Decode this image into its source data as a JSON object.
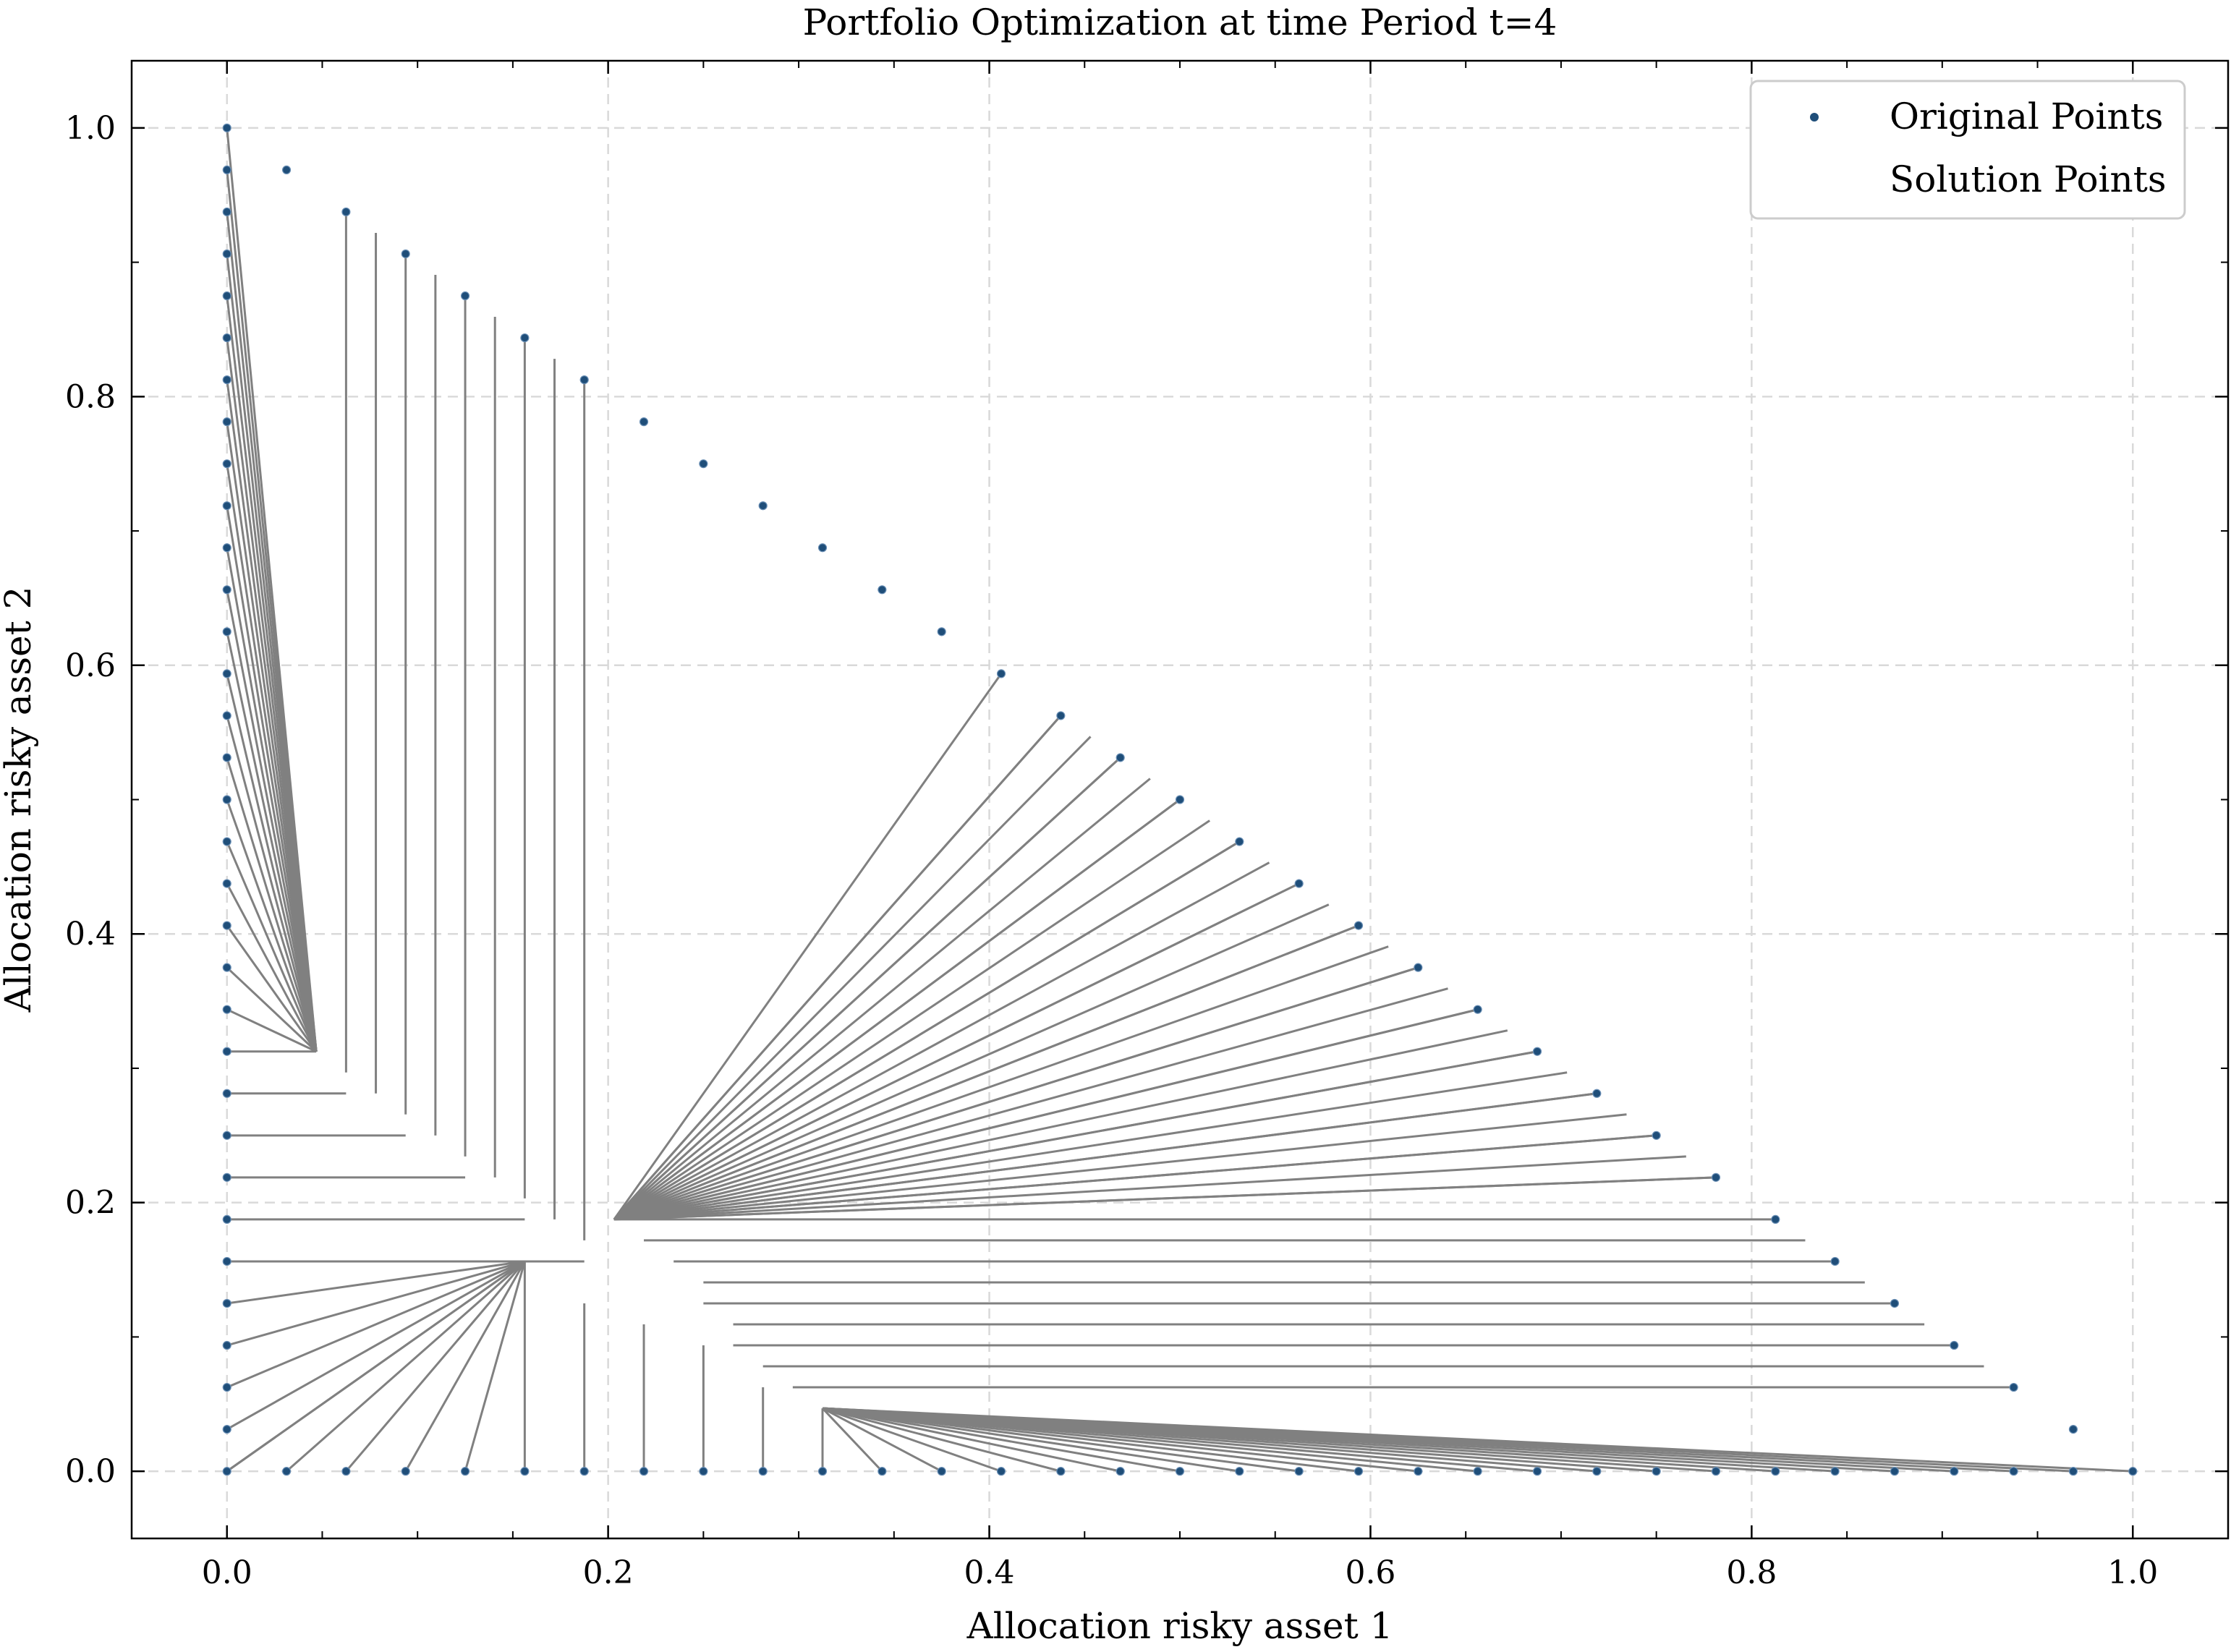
{
  "chart_data": {
    "type": "scatter",
    "title": "Portfolio Optimization at time Period t=4",
    "xlabel": "Allocation risky asset 1",
    "ylabel": "Allocation risky asset 2",
    "xlim": [
      -0.05,
      1.05
    ],
    "ylim": [
      -0.05,
      1.05
    ],
    "xticks": [
      0.0,
      0.2,
      0.4,
      0.6,
      0.8,
      1.0
    ],
    "yticks": [
      0.0,
      0.2,
      0.4,
      0.6,
      0.8,
      1.0
    ],
    "xtick_labels": [
      "0.0",
      "0.2",
      "0.4",
      "0.6",
      "0.8",
      "1.0"
    ],
    "ytick_labels": [
      "0.0",
      "0.2",
      "0.4",
      "0.6",
      "0.8",
      "1.0"
    ],
    "grid": true,
    "legend_position": "top-right",
    "legend": [
      "Original Points",
      "Solution Points"
    ],
    "colors": {
      "original": "#1f4e79",
      "line": "#808080",
      "grid": "#d9d9d9"
    },
    "series": [
      {
        "name": "Original Points",
        "description": "Points on the boundary of the simplex: x=0 edge, y=0 edge, and x+y=1 diagonal, step 1/32",
        "step": 0.03125,
        "edges": [
          "x=0",
          "y=0",
          "x+y=1"
        ]
      },
      {
        "name": "Solution Points",
        "clusters": [
          {
            "x": 0.046875,
            "y": 0.3125,
            "source": "x=0 edge, y from 0.3125 to 1.0"
          },
          {
            "x": 0.203125,
            "y": 0.1875,
            "source": "diagonal, x from 0.203125 to 0.796875"
          },
          {
            "x": 0.15625,
            "y": 0.15625,
            "source": "x=0 edge, y from 0.0 to 0.15625; y=0 edge, x from 0.0 to 0.15625"
          },
          {
            "x": 0.3125,
            "y": 0.046875,
            "source": "y=0 edge, x from 0.3125 to 1.0"
          }
        ],
        "vertical_segments": [
          {
            "x": 0.0625,
            "y_top": 0.9375,
            "y_end": 0.296875
          },
          {
            "x": 0.078125,
            "y_top": 0.921875,
            "y_end": 0.28125
          },
          {
            "x": 0.09375,
            "y_top": 0.90625,
            "y_end": 0.265625
          },
          {
            "x": 0.109375,
            "y_top": 0.890625,
            "y_end": 0.25
          },
          {
            "x": 0.125,
            "y_top": 0.875,
            "y_end": 0.234375
          },
          {
            "x": 0.140625,
            "y_top": 0.859375,
            "y_end": 0.21875
          },
          {
            "x": 0.15625,
            "y_top": 0.84375,
            "y_end": 0.203125
          },
          {
            "x": 0.171875,
            "y_top": 0.828125,
            "y_end": 0.1875
          },
          {
            "x": 0.1875,
            "y_top": 0.8125,
            "y_end": 0.171875
          },
          {
            "x": 0.15625,
            "y_top": 0.15625,
            "y_end": 0.0
          },
          {
            "x": 0.1875,
            "y_top": 0.125,
            "y_end": 0.0
          },
          {
            "x": 0.21875,
            "y_top": 0.109375,
            "y_end": 0.0
          },
          {
            "x": 0.25,
            "y_top": 0.09375,
            "y_end": 0.0
          },
          {
            "x": 0.28125,
            "y_top": 0.0625,
            "y_end": 0.0
          }
        ],
        "horizontal_segments": [
          {
            "y": 0.28125,
            "x_end": 0.0625
          },
          {
            "y": 0.25,
            "x_end": 0.09375
          },
          {
            "y": 0.21875,
            "x_end": 0.125
          },
          {
            "y": 0.1875,
            "x_end": 0.15625
          },
          {
            "y": 0.15625,
            "x_end": 0.1875
          },
          {
            "y": 0.1875,
            "x_start": 0.203125,
            "x_end": 0.8125
          },
          {
            "y": 0.171875,
            "x_start": 0.21875,
            "x_end": 0.828125
          },
          {
            "y": 0.15625,
            "x_start": 0.234375,
            "x_end": 0.84375
          },
          {
            "y": 0.140625,
            "x_start": 0.25,
            "x_end": 0.859375
          },
          {
            "y": 0.125,
            "x_start": 0.25,
            "x_end": 0.875
          },
          {
            "y": 0.109375,
            "x_start": 0.265625,
            "x_end": 0.890625
          },
          {
            "y": 0.09375,
            "x_start": 0.265625,
            "x_end": 0.90625
          },
          {
            "y": 0.078125,
            "x_start": 0.28125,
            "x_end": 0.921875
          },
          {
            "y": 0.0625,
            "x_start": 0.296875,
            "x_end": 0.9375
          }
        ]
      }
    ]
  }
}
